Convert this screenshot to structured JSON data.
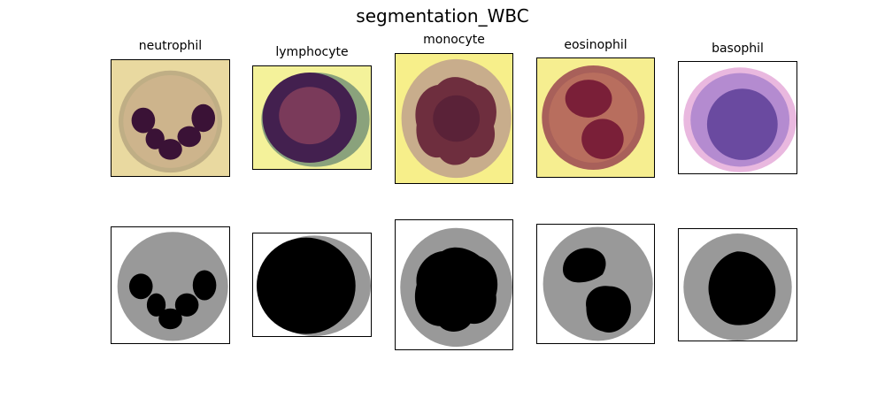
{
  "figure": {
    "title": "segmentation_WBC",
    "cells": [
      {
        "label": "neutrophil"
      },
      {
        "label": "lymphocyte"
      },
      {
        "label": "monocyte"
      },
      {
        "label": "eosinophil"
      },
      {
        "label": "basophil"
      }
    ]
  },
  "colors": {
    "mask_cytoplasm": "#999999",
    "mask_nucleus": "#000000",
    "mask_background": "#ffffff",
    "neutrophil_bg": "#e8d9a2",
    "lymphocyte_bg": "#f4f29a",
    "monocyte_bg": "#f7ef8a",
    "eosinophil_bg": "#f6ee90",
    "basophil_bg": "#ffffff"
  }
}
